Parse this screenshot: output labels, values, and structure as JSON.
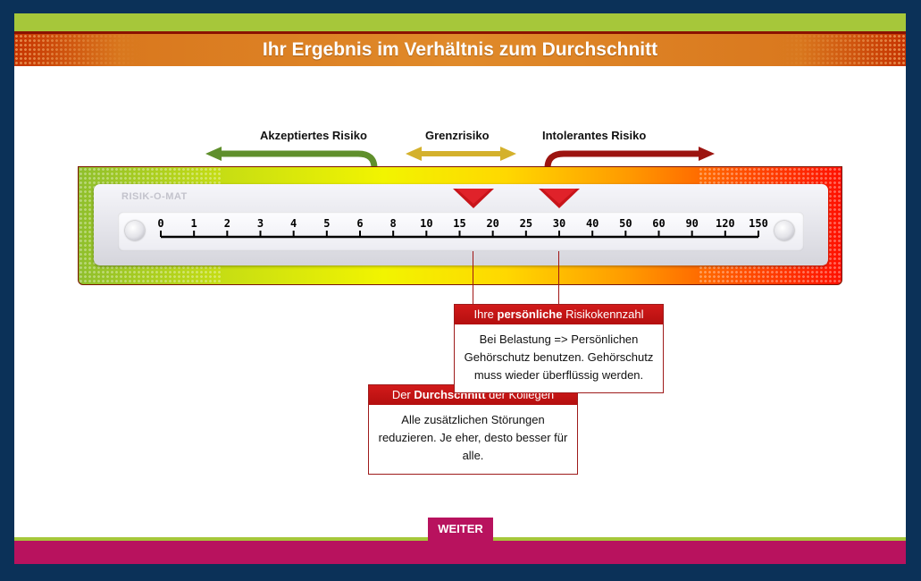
{
  "header": {
    "title": "Ihr Ergebnis im Verhältnis zum Durchschnitt"
  },
  "zones": {
    "accepted": "Akzeptiertes Risiko",
    "border": "Grenzrisiko",
    "intolerable": "Intolerantes Risiko"
  },
  "meter": {
    "brand": "RISIK-O-MAT",
    "scale_labels": [
      "0",
      "1",
      "2",
      "3",
      "4",
      "5",
      "6",
      "8",
      "10",
      "15",
      "20",
      "25",
      "30",
      "40",
      "50",
      "60",
      "90",
      "120",
      "150"
    ]
  },
  "markers": {
    "average_value": "15",
    "personal_value": "30"
  },
  "personal_box": {
    "title_pre": "Ihre ",
    "title_bold": "persönliche",
    "title_post": " Risikokennzahl",
    "text": "Bei Belastung => Persönlichen Gehörschutz benutzen. Gehörschutz muss wieder überflüssig werden."
  },
  "average_box": {
    "title_pre": "Der ",
    "title_bold": "Durchschnitt",
    "title_post": " der Kollegen",
    "text": "Alle zusätzlichen Störungen reduzieren. Je eher, desto besser für alle."
  },
  "footer": {
    "next_label": "WEITER"
  },
  "colors": {
    "accepted_arrow": "#5f8f2c",
    "border_arrow": "#d4b12c",
    "intolerable_arrow": "#9c1410",
    "accent_red": "#b40f0f",
    "button_magenta": "#b8125e"
  }
}
